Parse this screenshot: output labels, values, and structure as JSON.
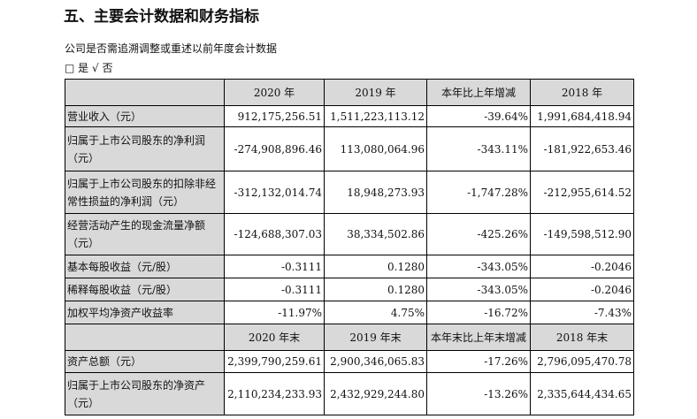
{
  "title": "五、主要会计数据和财务指标",
  "subtitle": "公司是否需追溯调整或重述以前年度会计数据",
  "options": {
    "yes_box": "□",
    "yes": "是",
    "no_check": "√",
    "no": "否"
  },
  "header1": [
    "",
    "2020 年",
    "2019 年",
    "本年比上年增减",
    "2018 年"
  ],
  "rows1": [
    [
      "营业收入（元）",
      "912,175,256.51",
      "1,511,223,113.12",
      "-39.64%",
      "1,991,684,418.94"
    ],
    [
      "归属于上市公司股东的净利润（元）",
      "-274,908,896.46",
      "113,080,064.96",
      "-343.11%",
      "-181,922,653.46"
    ],
    [
      "归属于上市公司股东的扣除非经常性损益的净利润（元）",
      "-312,132,014.74",
      "18,948,273.93",
      "-1,747.28%",
      "-212,955,614.52"
    ],
    [
      "经营活动产生的现金流量净额（元）",
      "-124,688,307.03",
      "38,334,502.86",
      "-425.26%",
      "-149,598,512.90"
    ],
    [
      "基本每股收益（元/股）",
      "-0.3111",
      "0.1280",
      "-343.05%",
      "-0.2046"
    ],
    [
      "稀释每股收益（元/股）",
      "-0.3111",
      "0.1280",
      "-343.05%",
      "-0.2046"
    ],
    [
      "加权平均净资产收益率",
      "-11.97%",
      "4.75%",
      "-16.72%",
      "-7.43%"
    ]
  ],
  "header2": [
    "",
    "2020 年末",
    "2019 年末",
    "本年末比上年末增减",
    "2018 年末"
  ],
  "rows2": [
    [
      "资产总额（元）",
      "2,399,790,259.61",
      "2,900,346,065.83",
      "-17.26%",
      "2,796,095,470.78"
    ],
    [
      "归属于上市公司股东的净资产（元）",
      "2,110,234,233.93",
      "2,432,929,244.80",
      "-13.26%",
      "2,335,644,434.65"
    ]
  ]
}
